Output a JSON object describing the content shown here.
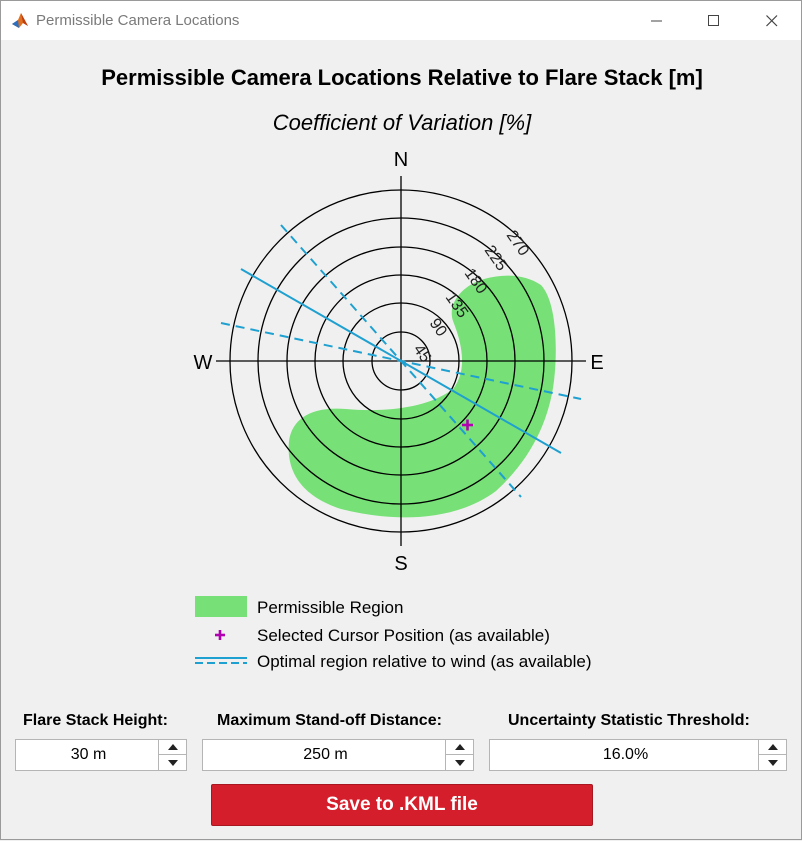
{
  "window": {
    "title": "Permissible Camera Locations",
    "icon": "matlab-icon",
    "controls": [
      "minimize-icon",
      "maximize-icon",
      "close-icon"
    ]
  },
  "figure": {
    "title": "Permissible Camera Locations Relative to Flare Stack [m]",
    "subtitle": "Coefficient of Variation [%]",
    "compass": {
      "north": "N",
      "south": "S",
      "east": "E",
      "west": "W"
    },
    "ring_labels": [
      "45",
      "90",
      "135",
      "180",
      "225",
      "270"
    ],
    "colors": {
      "region": "#77e077",
      "cursor": "#b000b0",
      "wind_lines": "#1ea0d0"
    }
  },
  "legend": {
    "region": "Permissible Region",
    "cursor": "Selected Cursor Position (as available)",
    "wind": "Optimal region relative to wind (as available)"
  },
  "controls": {
    "height": {
      "label": "Flare Stack Height:",
      "value": "30 m"
    },
    "standoff": {
      "label": "Maximum Stand-off Distance:",
      "value": "250 m"
    },
    "threshold": {
      "label": "Uncertainty Statistic Threshold:",
      "value": "16.0%"
    }
  },
  "save_button": {
    "label": "Save to .KML file",
    "color": "#d51e2b"
  }
}
